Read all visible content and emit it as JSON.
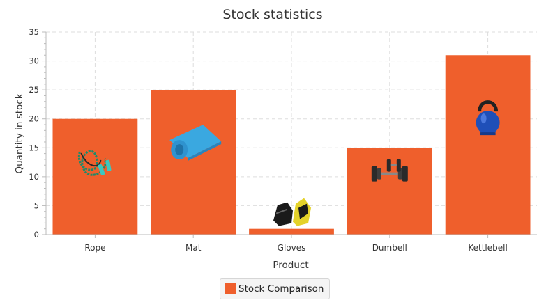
{
  "colors": {
    "bar": "#EF5F2C",
    "grid": "#DDDDDD",
    "axis": "#BBBBBB",
    "text": "#333333"
  },
  "chart_data": {
    "type": "bar",
    "title": "Stock statistics",
    "xlabel": "Product",
    "ylabel": "Quantity in stock",
    "categories": [
      "Rope",
      "Mat",
      "Gloves",
      "Dumbell",
      "Kettlebell"
    ],
    "series": [
      {
        "name": "Stock Comparison",
        "values": [
          20,
          25,
          1,
          15,
          31
        ]
      }
    ],
    "ylim": [
      0,
      35
    ],
    "yticks": [
      0,
      5,
      10,
      15,
      20,
      25,
      30,
      35
    ],
    "grid": true,
    "legend": "bottom-center",
    "bar_icons": [
      "jump-rope-icon",
      "yoga-mat-icon",
      "gloves-icon",
      "dumbbell-icon",
      "kettlebell-icon"
    ]
  }
}
